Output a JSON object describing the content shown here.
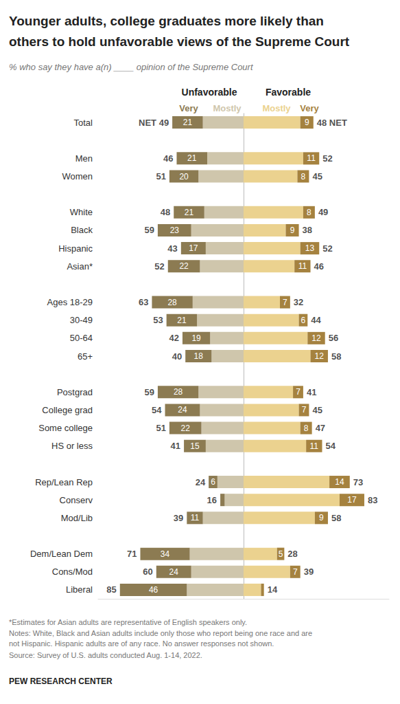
{
  "chart_data": {
    "type": "bar",
    "orientation": "horizontal",
    "stacked": true,
    "data_labels": true,
    "tick_labels": "y",
    "title": "Younger adults, college graduates more likely than others to hold unfavorable views of the Supreme Court",
    "subtitle": "% who say they have a(n) ____ opinion of the Supreme Court",
    "categories": [
      "Total",
      null,
      "Men",
      "Women",
      null,
      "White",
      "Black",
      "Hispanic",
      "Asian*",
      null,
      "Ages 18-29",
      "30-49",
      "50-64",
      "65+",
      null,
      "Postgrad",
      "College grad",
      "Some college",
      "HS or less",
      null,
      "Rep/Lean Rep",
      "Conserv",
      "Mod/Lib",
      null,
      "Dem/Lean Dem",
      "Cons/Mod",
      "Liberal"
    ],
    "xlim": [
      0,
      100
    ],
    "series": [
      {
        "name": "Very",
        "side": "Unfavorable",
        "color": "#8c7b52",
        "values": [
          21,
          null,
          21,
          20,
          null,
          21,
          23,
          17,
          22,
          null,
          28,
          21,
          19,
          18,
          null,
          28,
          24,
          22,
          15,
          null,
          6,
          3,
          11,
          null,
          34,
          24,
          46
        ],
        "value_labels": [
          "21",
          null,
          "21",
          "20",
          null,
          "21",
          "23",
          "17",
          "22",
          null,
          "28",
          "21",
          "19",
          "18",
          null,
          "28",
          "24",
          "22",
          "15",
          null,
          "6",
          null,
          "11",
          null,
          "34",
          "24",
          "46"
        ]
      },
      {
        "name": "Mostly",
        "side": "Unfavorable",
        "color": "#cfc6ac",
        "data_labels": false,
        "values": [
          28,
          null,
          25,
          31,
          null,
          27,
          36,
          26,
          30,
          null,
          35,
          32,
          23,
          22,
          null,
          31,
          30,
          29,
          26,
          null,
          18,
          13,
          28,
          null,
          37,
          36,
          39
        ]
      },
      {
        "name": "Mostly",
        "side": "Favorable",
        "color": "#ebd28f",
        "data_labels": false,
        "values": [
          39,
          null,
          41,
          37,
          null,
          41,
          29,
          39,
          35,
          null,
          25,
          38,
          44,
          46,
          null,
          34,
          38,
          39,
          43,
          null,
          59,
          66,
          49,
          null,
          23,
          32,
          12
        ]
      },
      {
        "name": "Very",
        "side": "Favorable",
        "color": "#a5823f",
        "values": [
          9,
          null,
          11,
          8,
          null,
          8,
          9,
          13,
          11,
          null,
          7,
          6,
          12,
          12,
          null,
          7,
          7,
          8,
          11,
          null,
          14,
          17,
          9,
          null,
          5,
          7,
          2
        ],
        "value_labels": [
          "9",
          null,
          "11",
          "8",
          null,
          "8",
          "9",
          "13",
          "11",
          null,
          "7",
          "6",
          "12",
          "12",
          null,
          "7",
          "7",
          "8",
          "11",
          null,
          "14",
          "17",
          "9",
          null,
          "5",
          "7",
          null
        ]
      }
    ],
    "totals": [
      {
        "side": "Unfavorable",
        "values": [
          49,
          null,
          46,
          51,
          null,
          48,
          59,
          43,
          52,
          null,
          63,
          53,
          42,
          40,
          null,
          59,
          54,
          51,
          41,
          null,
          24,
          16,
          39,
          null,
          71,
          60,
          85
        ],
        "value_labels": [
          "NET 49",
          null,
          "46",
          "51",
          null,
          "48",
          "59",
          "43",
          "52",
          null,
          "63",
          "53",
          "42",
          "40",
          null,
          "59",
          "54",
          "51",
          "41",
          null,
          "24",
          "16",
          "39",
          null,
          "71",
          "60",
          "85"
        ]
      },
      {
        "side": "Favorable",
        "values": [
          48,
          null,
          52,
          45,
          null,
          49,
          38,
          52,
          46,
          null,
          32,
          44,
          56,
          58,
          null,
          41,
          45,
          47,
          54,
          null,
          73,
          83,
          58,
          null,
          28,
          39,
          14
        ],
        "value_labels": [
          "48 NET",
          null,
          "52",
          "45",
          null,
          "49",
          "38",
          "52",
          "46",
          null,
          "32",
          "44",
          "56",
          "58",
          null,
          "41",
          "45",
          "47",
          "54",
          null,
          "73",
          "83",
          "58",
          null,
          "28",
          "39",
          "14"
        ]
      }
    ],
    "notes": [
      "*Estimates for Asian adults are representative of English speakers only.",
      "Notes: White, Black and Asian adults include only those who report being one race and are not Hispanic. Hispanic adults are of any race. No answer responses not shown.",
      "Source: Survey of U.S. adults conducted Aug. 1-14, 2022."
    ],
    "credit": "PEW RESEARCH CENTER"
  }
}
